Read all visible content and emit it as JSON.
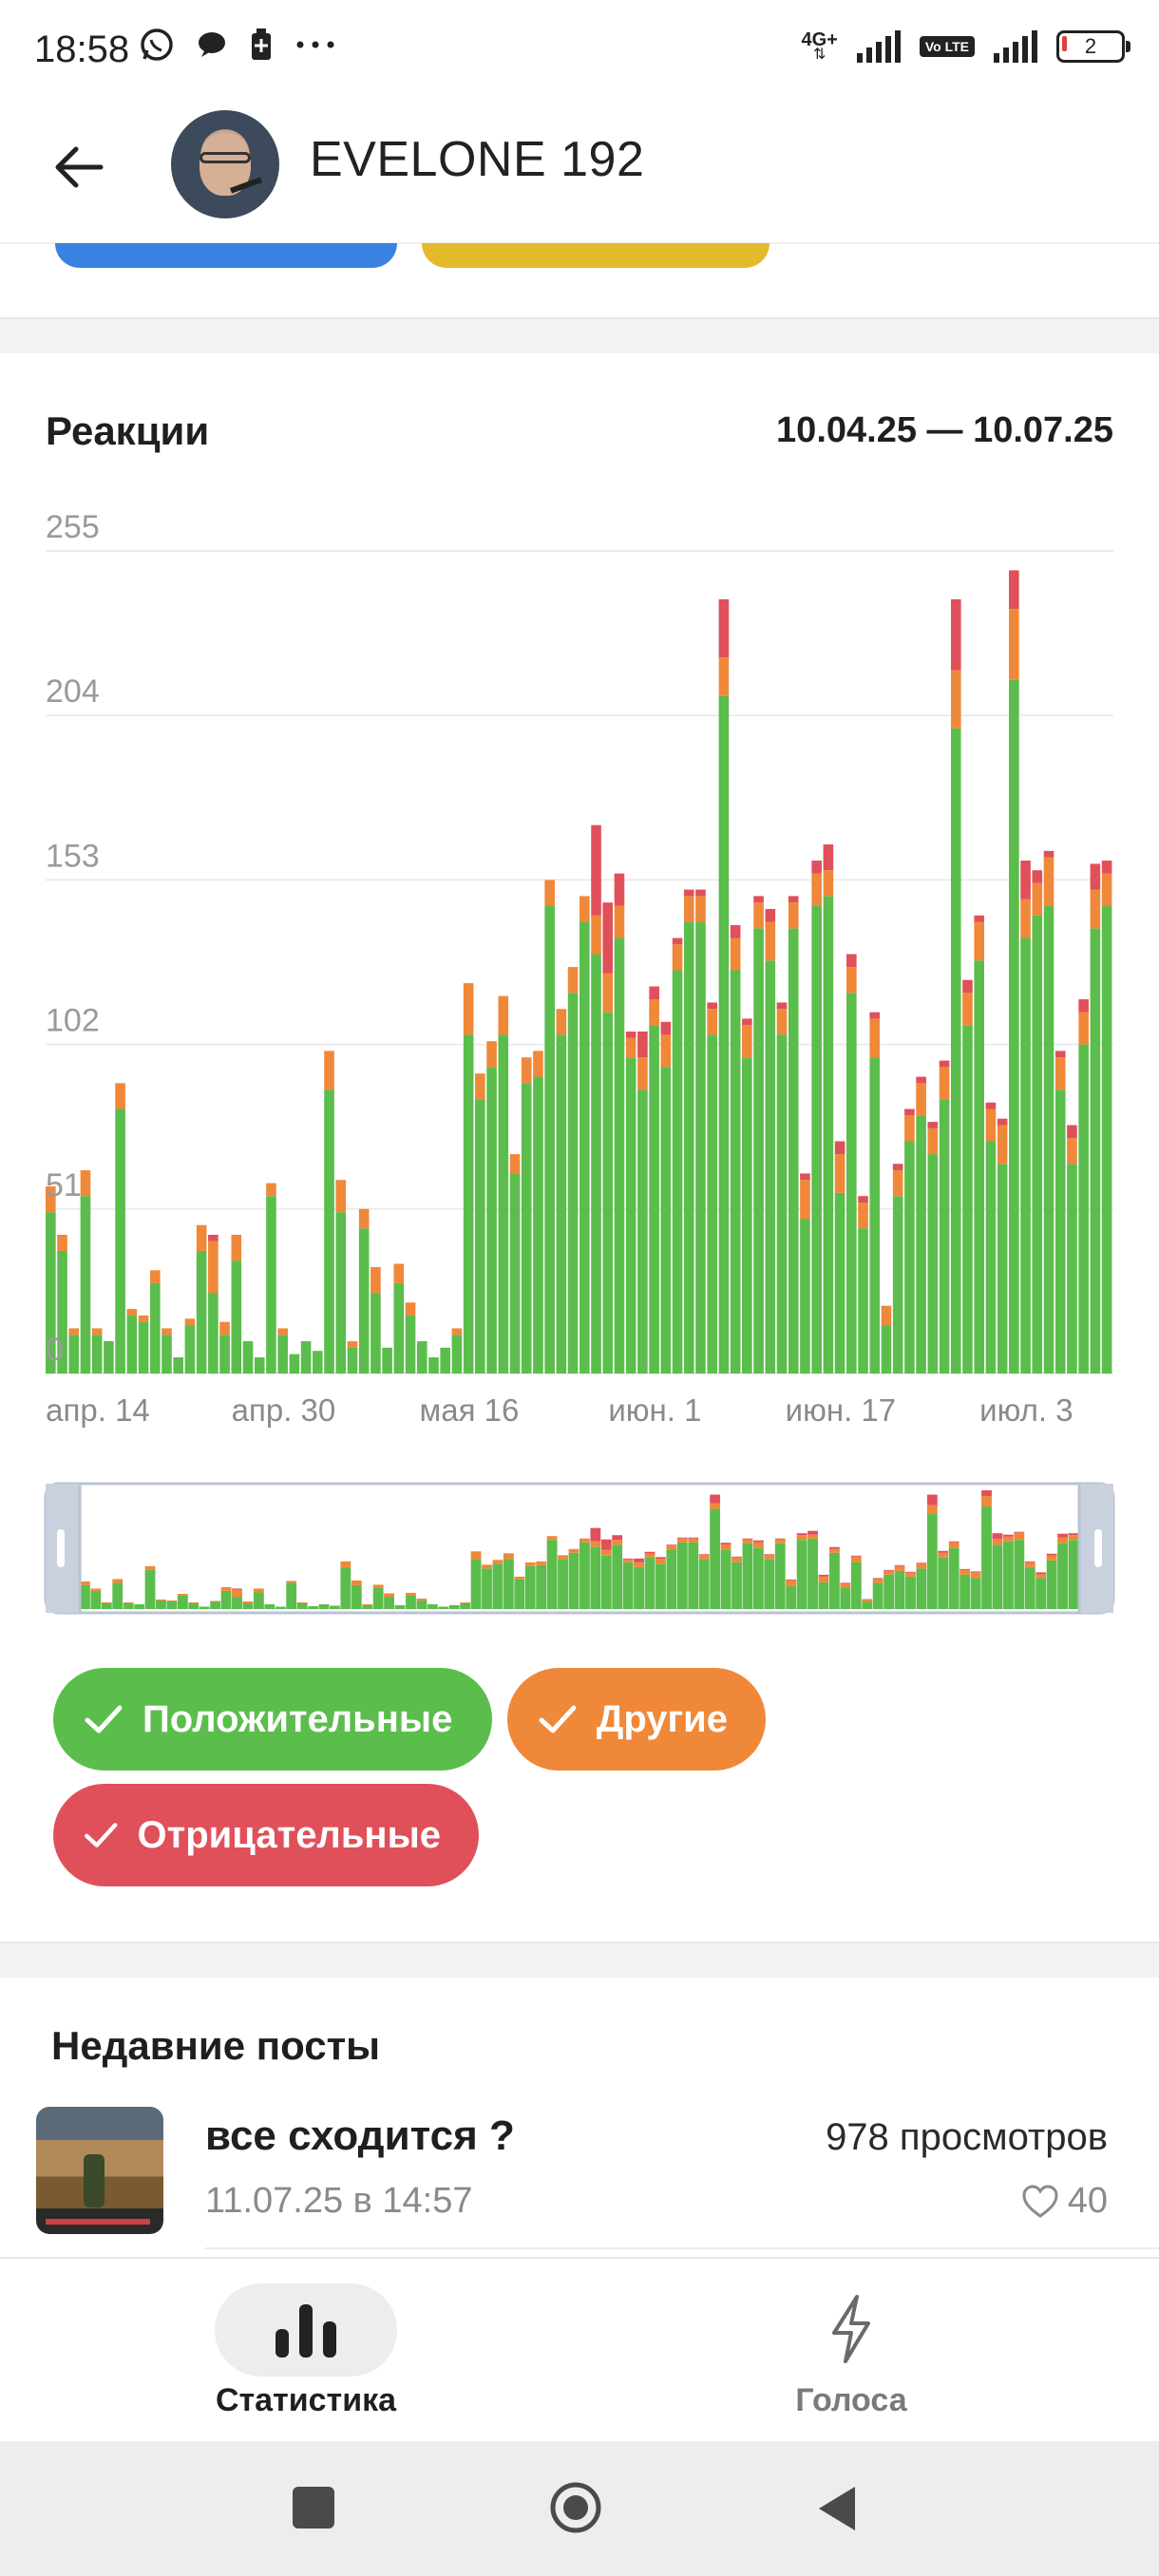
{
  "status_bar": {
    "time": "18:58",
    "left_icons": [
      "whatsapp-icon",
      "chat-bubble-icon",
      "battery-saver-icon",
      "more-dots-icon"
    ],
    "network_tag": "4G+",
    "volte": "Vo LTE",
    "battery_level": "2"
  },
  "header": {
    "title": "EVELONE 192",
    "back_icon": "arrow-left-icon"
  },
  "reactions": {
    "title": "Реакции",
    "date_range": "10.04.25 — 10.07.25",
    "filters": {
      "positive": "Положительные",
      "other": "Другие",
      "negative": "Отрицательные"
    }
  },
  "colors": {
    "positive": "#5bbd4c",
    "other": "#f0883a",
    "negative": "#e0505a",
    "tab_blue": "#3b82e0",
    "tab_yellow": "#e5b92c"
  },
  "chart_data": {
    "type": "bar",
    "stacked": true,
    "ylim": [
      0,
      255
    ],
    "yticks": [
      0,
      51,
      102,
      153,
      204,
      255
    ],
    "x_tick_labels": [
      "апр. 14",
      "апр. 30",
      "мая 16",
      "июн. 1",
      "июн. 17",
      "июл. 3"
    ],
    "x_tick_days": [
      4,
      20,
      36,
      52,
      68,
      84
    ],
    "days": 92,
    "grid": true,
    "legend": "bottom",
    "series": [
      {
        "name": "Положительные",
        "values": [
          50,
          38,
          12,
          55,
          12,
          10,
          82,
          18,
          16,
          28,
          12,
          5,
          15,
          38,
          25,
          12,
          35,
          10,
          5,
          55,
          12,
          6,
          10,
          7,
          88,
          50,
          8,
          45,
          25,
          8,
          28,
          18,
          10,
          5,
          8,
          12,
          105,
          85,
          95,
          105,
          62,
          90,
          92,
          145,
          105,
          118,
          140,
          130,
          112,
          135,
          98,
          88,
          108,
          95,
          125,
          140,
          140,
          105,
          210,
          125,
          98,
          138,
          128,
          105,
          138,
          48,
          145,
          148,
          56,
          118,
          45,
          98,
          15,
          55,
          72,
          80,
          68,
          85,
          200,
          108,
          128,
          72,
          65,
          215,
          135,
          142,
          145,
          88,
          65,
          102,
          138,
          145
        ]
      },
      {
        "name": "Другие",
        "values": [
          8,
          5,
          2,
          8,
          2,
          0,
          8,
          2,
          2,
          4,
          2,
          0,
          2,
          8,
          16,
          4,
          8,
          0,
          0,
          4,
          2,
          0,
          0,
          0,
          12,
          10,
          2,
          6,
          8,
          0,
          6,
          4,
          0,
          0,
          0,
          2,
          16,
          8,
          8,
          12,
          6,
          8,
          8,
          8,
          8,
          8,
          8,
          12,
          12,
          10,
          6,
          10,
          8,
          10,
          8,
          8,
          8,
          8,
          12,
          10,
          10,
          8,
          12,
          8,
          8,
          12,
          10,
          8,
          12,
          8,
          8,
          12,
          6,
          8,
          8,
          10,
          8,
          10,
          18,
          10,
          12,
          10,
          12,
          22,
          12,
          10,
          15,
          10,
          8,
          10,
          12,
          10
        ]
      },
      {
        "name": "Отрицательные",
        "values": [
          0,
          0,
          0,
          0,
          0,
          0,
          0,
          0,
          0,
          0,
          0,
          0,
          0,
          0,
          2,
          0,
          0,
          0,
          0,
          0,
          0,
          0,
          0,
          0,
          0,
          0,
          0,
          0,
          0,
          0,
          0,
          0,
          0,
          0,
          0,
          0,
          0,
          0,
          0,
          0,
          0,
          0,
          0,
          0,
          0,
          0,
          0,
          28,
          22,
          10,
          2,
          8,
          4,
          4,
          2,
          2,
          2,
          2,
          18,
          4,
          2,
          2,
          4,
          2,
          2,
          2,
          4,
          8,
          4,
          4,
          2,
          2,
          0,
          2,
          2,
          2,
          2,
          2,
          22,
          4,
          2,
          2,
          2,
          12,
          12,
          4,
          2,
          2,
          4,
          4,
          8,
          4
        ]
      }
    ]
  },
  "recent_posts": {
    "title": "Недавние посты",
    "items": [
      {
        "title": "все сходится ?",
        "date": "11.07.25 в 14:57",
        "views": "978 просмотров",
        "likes": "40"
      }
    ]
  },
  "bottom_nav": {
    "stats_label": "Статистика",
    "votes_label": "Голоса"
  }
}
